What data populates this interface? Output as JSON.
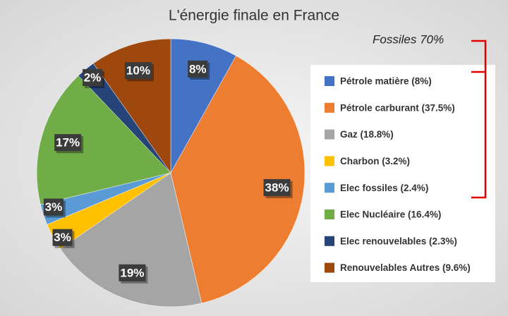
{
  "chart_data": {
    "type": "pie",
    "title": "L'énergie finale en France",
    "categories": [
      "Pétrole matière (8%)",
      "Pétrole carburant (37.5%)",
      "Gaz (18.8%)",
      "Charbon (3.2%)",
      "Elec fossiles (2.4%)",
      "Elec Nucléaire (16.4%)",
      "Elec renouvelables (2.3%)",
      "Renouvelables Autres (9.6%)"
    ],
    "values": [
      8.1,
      38.2,
      19.1,
      3.3,
      2.5,
      16.7,
      2.3,
      9.8
    ],
    "value_labels": [
      "8%",
      "38%",
      "19%",
      "3%",
      "3%",
      "17%",
      "2%",
      "10%"
    ],
    "colors": [
      "#4472c4",
      "#ed7d31",
      "#a5a5a5",
      "#ffc000",
      "#5b9bd5",
      "#70ad47",
      "#264478",
      "#9e480e"
    ],
    "annotation": "Fossiles 70%",
    "legend": "right"
  }
}
